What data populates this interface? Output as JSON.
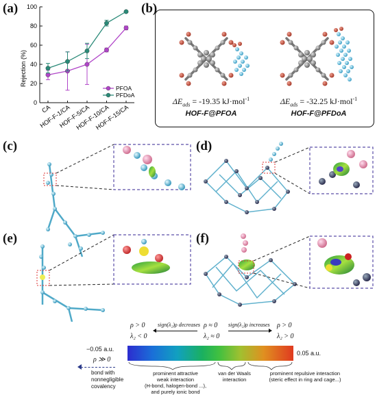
{
  "panels": {
    "a": "(a)",
    "b": "(b)",
    "c": "(c)",
    "d": "(d)",
    "e": "(e)",
    "f": "(f)"
  },
  "chart_data": {
    "type": "line",
    "categories": [
      "CA",
      "HOF-F-1/CA",
      "HOF-F-5/CA",
      "HOF-F-10/CA",
      "HOF-F-15/CA"
    ],
    "ylabel": "Rejection (%)",
    "xlabel": "",
    "ylim": [
      0,
      100
    ],
    "yticks": [
      0,
      20,
      40,
      60,
      80,
      100
    ],
    "legend_position": "bottom-right",
    "series": [
      {
        "name": "PFOA",
        "color": "#b044c8",
        "values": [
          29,
          33,
          40,
          55,
          78
        ],
        "errors": [
          5,
          20,
          21,
          2,
          2
        ]
      },
      {
        "name": "PFDoA",
        "color": "#2a8a78",
        "values": [
          36,
          43,
          54,
          83,
          95
        ],
        "errors": [
          5,
          10,
          8,
          3,
          1
        ]
      }
    ]
  },
  "panel_b": {
    "left": {
      "energy_sym": "ΔE",
      "energy_sub": "ads",
      "energy_value": " = -19.35 kJ·mol",
      "energy_exp": "-1",
      "name": "HOF-F@PFOA"
    },
    "right": {
      "energy_sym": "ΔE",
      "energy_sub": "ads",
      "energy_value": " = -32.25 kJ·mol",
      "energy_exp": "-1",
      "name": "HOF-F@PFDoA"
    }
  },
  "colorbar": {
    "rho_pos": "ρ > 0",
    "rho_zero": "ρ ≈ 0",
    "decreases": "sign(λ₂)ρ decreases",
    "increases": "sign(λ₂)ρ increases",
    "lam_neg": "λ₂ < 0",
    "lam_zero": "λ₂ ≈ 0",
    "lam_pos": "λ₂ > 0",
    "rho_big": "ρ ≫ 0",
    "min_label": "−0.05 a.u.",
    "max_label": "0.05 a.u.",
    "bond_label_1": "bond with",
    "bond_label_2": "nonnegligible",
    "bond_label_3": "covalency",
    "attractive_1": "prominent attractive",
    "attractive_2": "weak interaction",
    "attractive_3": "(H-bond, halogen-bond ...),",
    "attractive_4": "and purely ionic bond",
    "vdw_1": "van der Waals",
    "vdw_2": "interaction",
    "repulsive_1": "prominent repulsive interaction",
    "repulsive_2": "(steric effect in ring and cage...)"
  }
}
